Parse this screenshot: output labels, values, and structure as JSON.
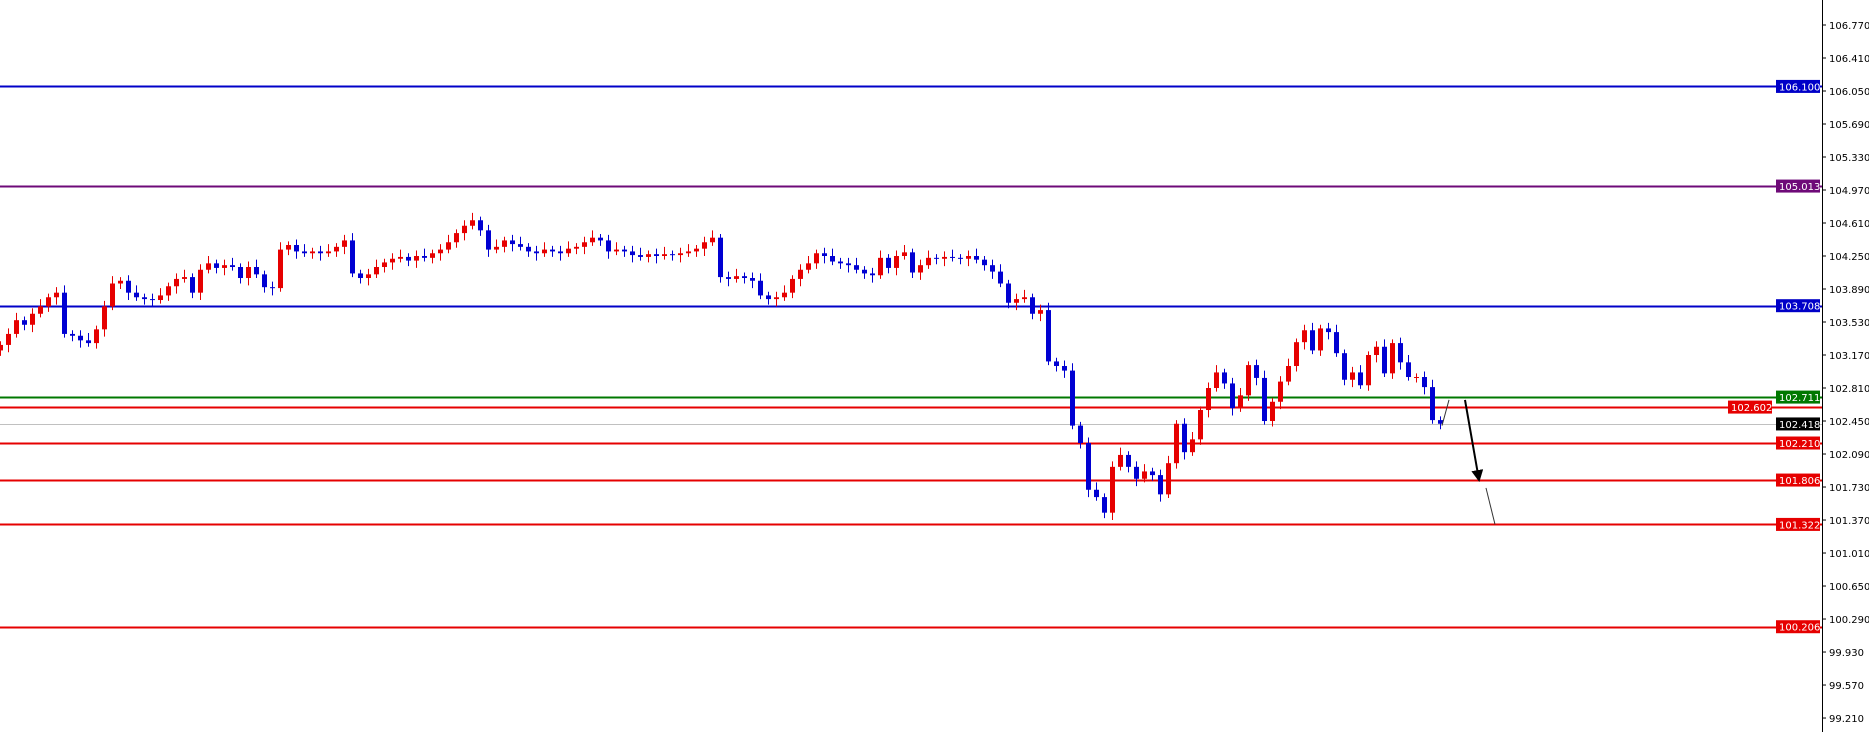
{
  "chart_data": {
    "type": "candlestick",
    "title": "",
    "xlabel": "",
    "ylabel": "",
    "ylim": [
      99.0,
      107.0
    ],
    "grid": false,
    "y_ticks": [
      "106.770",
      "106.410",
      "106.050",
      "105.690",
      "105.330",
      "104.970",
      "104.610",
      "104.250",
      "103.890",
      "103.530",
      "103.170",
      "102.810",
      "102.450",
      "102.090",
      "101.730",
      "101.370",
      "101.010",
      "100.650",
      "100.290",
      "99.930",
      "99.570",
      "99.210"
    ],
    "colors": {
      "bull": "#e60000",
      "bear": "#0000d2",
      "axis": "#000000",
      "current": "#c0c0c0"
    },
    "first_open": 103.22,
    "closes": [
      103.28,
      103.4,
      103.55,
      103.5,
      103.62,
      103.7,
      103.8,
      103.85,
      103.4,
      103.38,
      103.33,
      103.3,
      103.45,
      103.7,
      103.95,
      103.98,
      103.85,
      103.8,
      103.78,
      103.77,
      103.82,
      103.92,
      104.0,
      104.02,
      103.85,
      104.1,
      104.17,
      104.12,
      104.15,
      104.13,
      104.01,
      104.13,
      104.05,
      103.91,
      103.9,
      104.32,
      104.37,
      104.3,
      104.28,
      104.3,
      104.28,
      104.3,
      104.35,
      104.42,
      104.06,
      104.01,
      104.05,
      104.13,
      104.18,
      104.22,
      104.24,
      104.2,
      104.25,
      104.23,
      104.28,
      104.32,
      104.4,
      104.5,
      104.58,
      104.64,
      104.53,
      104.32,
      104.35,
      104.42,
      104.38,
      104.35,
      104.3,
      104.28,
      104.32,
      104.3,
      104.28,
      104.33,
      104.35,
      104.4,
      104.45,
      104.42,
      104.3,
      104.32,
      104.3,
      104.26,
      104.24,
      104.27,
      104.25,
      104.27,
      104.26,
      104.28,
      104.3,
      104.33,
      104.4,
      104.45,
      104.02,
      104.0,
      104.03,
      104.01,
      103.98,
      103.82,
      103.78,
      103.8,
      103.85,
      104.0,
      104.1,
      104.17,
      104.28,
      104.25,
      104.19,
      104.17,
      104.15,
      104.1,
      104.06,
      104.04,
      104.23,
      104.12,
      104.25,
      104.29,
      104.07,
      104.15,
      104.23,
      104.22,
      104.24,
      104.23,
      104.22,
      104.25,
      104.21,
      104.15,
      104.08,
      103.95,
      103.74,
      103.78,
      103.8,
      103.62,
      103.66,
      103.1,
      103.05,
      103.0,
      102.4,
      102.21,
      101.7,
      101.62,
      101.45,
      101.95,
      102.08,
      101.95,
      101.82,
      101.9,
      101.86,
      101.65,
      101.99,
      102.42,
      102.11,
      102.25,
      102.57,
      102.81,
      102.98,
      102.86,
      102.59,
      102.73,
      103.06,
      102.92,
      102.45,
      102.66,
      102.88,
      103.05,
      103.31,
      103.44,
      103.22,
      103.46,
      103.42,
      103.19,
      102.9,
      102.98,
      102.84,
      103.17,
      103.26,
      102.97,
      103.3,
      103.09,
      102.93,
      102.93,
      102.82,
      102.46,
      102.42
    ],
    "levels": [
      {
        "price": 106.1,
        "label": "106.100",
        "color": "#0000c8"
      },
      {
        "price": 105.013,
        "label": "105.013",
        "color": "#6e0a78"
      },
      {
        "price": 103.708,
        "label": "103.708",
        "color": "#0000c8"
      },
      {
        "price": 102.711,
        "label": "102.711",
        "color": "#007800"
      },
      {
        "price": 102.602,
        "label": "102.602",
        "color": "#e60000"
      },
      {
        "price": 102.21,
        "label": "102.210",
        "color": "#e60000"
      },
      {
        "price": 101.806,
        "label": "101.806",
        "color": "#e60000"
      },
      {
        "price": 101.322,
        "label": "101.322",
        "color": "#e60000"
      },
      {
        "price": 100.206,
        "label": "100.206",
        "color": "#e60000"
      }
    ],
    "current_price": {
      "price": 102.418,
      "label": "102.418",
      "color": "#000000"
    },
    "projection_arrows": [
      {
        "from": 102.4,
        "to": 102.68,
        "weight": "thin"
      },
      {
        "from": 102.68,
        "to": 101.806,
        "weight": "bold"
      },
      {
        "from": 101.72,
        "to": 101.322,
        "weight": "thin"
      }
    ]
  }
}
